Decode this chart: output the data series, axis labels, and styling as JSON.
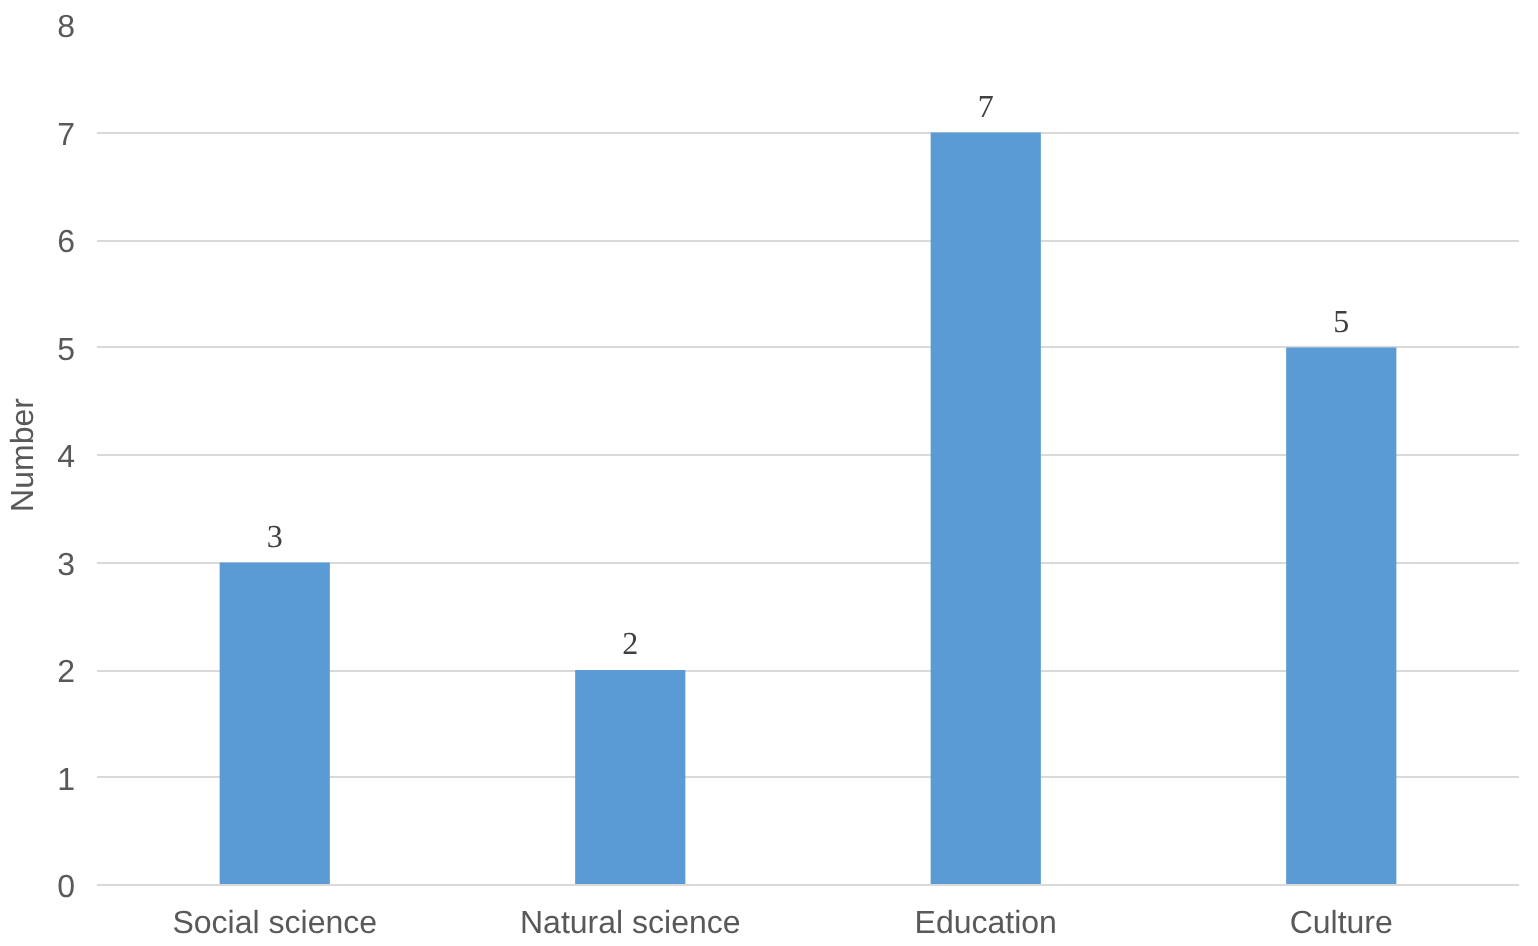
{
  "chart_data": {
    "type": "bar",
    "ylabel": "Number",
    "categories": [
      "Social science",
      "Natural science",
      "Education",
      "Culture"
    ],
    "values": [
      3,
      2,
      7,
      5
    ],
    "color": "#5b9bd5",
    "ylim": [
      0,
      8
    ],
    "yticks": [
      0,
      1,
      2,
      3,
      4,
      5,
      6,
      7,
      8
    ],
    "grid": "y",
    "data_labels": true
  }
}
